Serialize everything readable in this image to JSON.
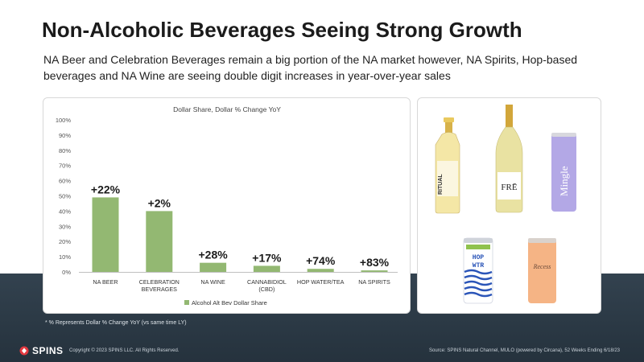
{
  "slide": {
    "title": "Non-Alcoholic Beverages Seeing Strong Growth",
    "subtitle": "NA Beer and Celebration Beverages remain a big portion of the NA market however, NA Spirits, Hop-based beverages and NA Wine are seeing double digit increases in year-over-year sales",
    "footnote": "* % Represents Dollar % Change YoY (vs same time LY)",
    "logo_text": "SPINS",
    "copyright": "Copyright © 2023 SPINS LLC. All Rights Reserved.",
    "source": "Source: SPINS Natural Channel, MULO (powered by Circana), 52 Weeks Ending 6/18/23"
  },
  "colors": {
    "bar": "#93b872",
    "band": "#2c3a46"
  },
  "products": [
    {
      "name": "ritual-bottle",
      "label": "RITUAL",
      "color": "#f4e7a6"
    },
    {
      "name": "fre-wine-bottle",
      "label": "FRĒ",
      "color": "#e9e2a2"
    },
    {
      "name": "mingle-can",
      "label": "Mingle",
      "color": "#b3a8e6"
    },
    {
      "name": "hop-wtr-can",
      "label": "HOP WTR",
      "color": "#2b55b8"
    },
    {
      "name": "recess-can",
      "label": "Recess",
      "color": "#f5b485"
    }
  ],
  "chart_data": {
    "type": "bar",
    "title": "Dollar Share, Dollar % Change YoY",
    "categories": [
      [
        "NA BEER"
      ],
      [
        "CELEBRATION",
        "BEVERAGES"
      ],
      [
        "NA WINE"
      ],
      [
        "CANNABIDIOL",
        "(CBD)"
      ],
      [
        "HOP WATER/TEA"
      ],
      [
        "NA SPIRITS"
      ]
    ],
    "series": [
      {
        "name": "Alcohol Alt Bev Dollar Share",
        "values": [
          49,
          40,
          6,
          4,
          2,
          1
        ]
      }
    ],
    "data_labels": [
      "+22%",
      "+2%",
      "+28%",
      "+17%",
      "+74%",
      "+83%"
    ],
    "ylim": [
      0,
      100
    ],
    "yticks": [
      0,
      10,
      20,
      30,
      40,
      50,
      60,
      70,
      80,
      90,
      100
    ],
    "ytick_labels": [
      "0%",
      "10%",
      "20%",
      "30%",
      "40%",
      "50%",
      "60%",
      "70%",
      "80%",
      "90%",
      "100%"
    ],
    "legend": "bottom",
    "grid": false
  }
}
